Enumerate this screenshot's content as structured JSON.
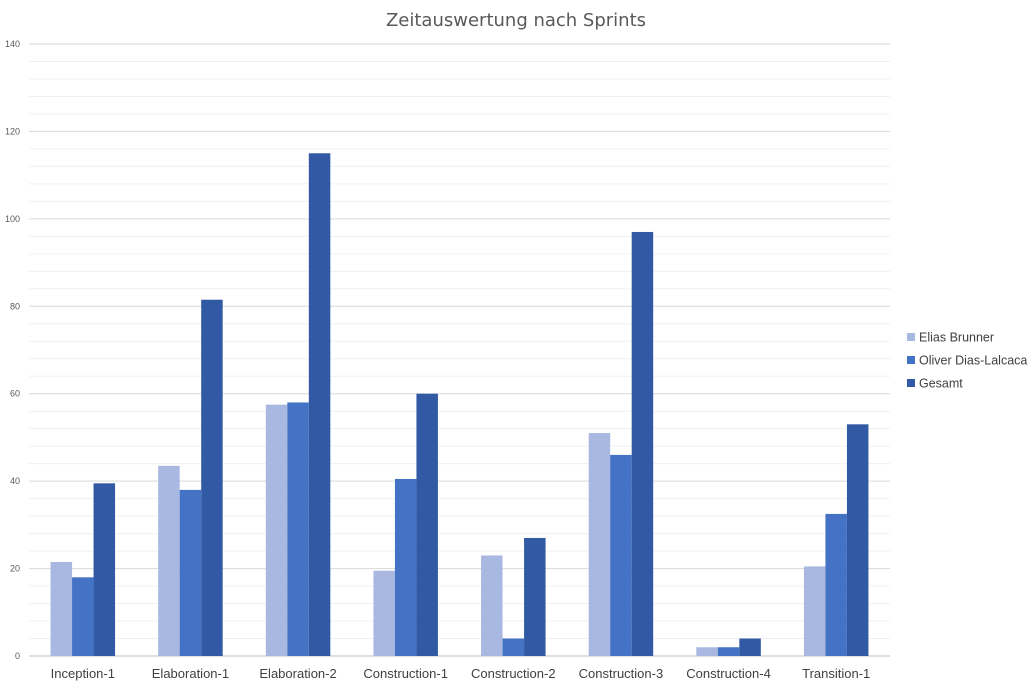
{
  "chart_data": {
    "type": "bar",
    "title": "Zeitauswertung nach Sprints",
    "xlabel": "",
    "ylabel": "",
    "categories": [
      "Inception-1",
      "Elaboration-1",
      "Elaboration-2",
      "Construction-1",
      "Construction-2",
      "Construction-3",
      "Construction-4",
      "Transition-1"
    ],
    "series": [
      {
        "name": "Elias Brunner",
        "color": "#a9b8e0",
        "values": [
          21.5,
          43.5,
          57.5,
          19.5,
          23,
          51,
          2,
          20.5
        ]
      },
      {
        "name": "Oliver Dias-Lalcaca",
        "color": "#4472c4",
        "values": [
          18,
          38,
          58,
          40.5,
          4,
          46,
          2,
          32.5
        ]
      },
      {
        "name": "Gesamt",
        "color": "#325aa4",
        "values": [
          39.5,
          81.5,
          115,
          60,
          27,
          97,
          4,
          53
        ]
      }
    ],
    "ylim": [
      0,
      140
    ],
    "yticks": [
      0,
      20,
      40,
      60,
      80,
      100,
      120,
      140
    ],
    "grid": true,
    "minor_grid": true,
    "legend_position": "right"
  }
}
